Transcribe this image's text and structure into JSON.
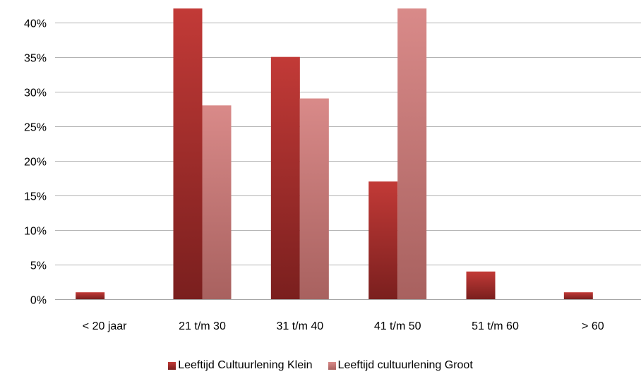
{
  "chart_data": {
    "type": "bar",
    "title": "",
    "xlabel": "",
    "ylabel": "",
    "categories": [
      "< 20 jaar",
      "21 t/m 30",
      "31 t/m 40",
      "41 t/m 50",
      "51 t/m 60",
      "> 60"
    ],
    "series": [
      {
        "name": "Leeftijd Cultuurlening Klein",
        "values": [
          1,
          42,
          35,
          17,
          4,
          1
        ],
        "color_top": "#c23a37",
        "color_bottom": "#7a1f1e"
      },
      {
        "name": "Leeftijd cultuurlening Groot",
        "values": [
          0,
          28,
          29,
          42,
          0,
          0
        ],
        "color_top": "#d98a89",
        "color_bottom": "#a8615f"
      }
    ],
    "ylim": [
      0,
      42
    ],
    "yticks": [
      0,
      5,
      10,
      15,
      20,
      25,
      30,
      35,
      40
    ],
    "ytick_labels": [
      "0%",
      "5%",
      "10%",
      "15%",
      "20%",
      "25%",
      "30%",
      "35%",
      "40%"
    ],
    "grid": true,
    "legend_position": "bottom"
  }
}
